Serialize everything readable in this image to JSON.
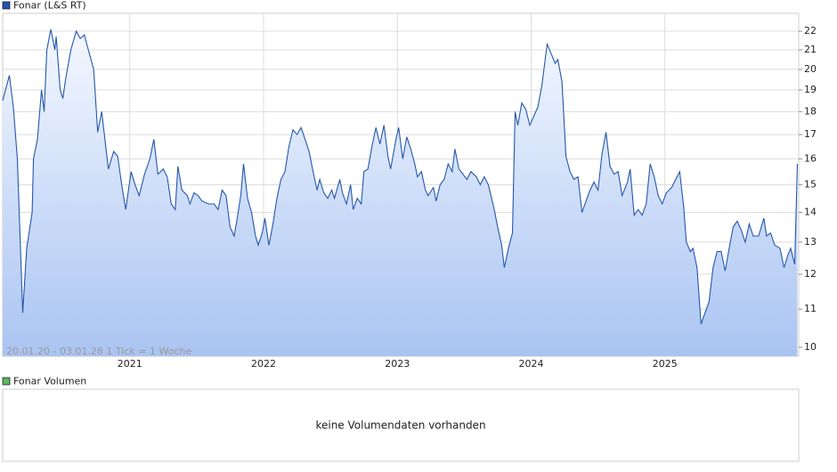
{
  "chart_data": {
    "type": "line",
    "legend": "Fonar (L&S RT)",
    "note": "20.01.20 - 03.01.26   1 Tick = 1 Woche",
    "log_scale": true,
    "grid": true,
    "xlim": [
      2020.05,
      2026.0
    ],
    "xticks": [
      2021,
      2022,
      2023,
      2024,
      2025
    ],
    "ylim": [
      9.78,
      23.0
    ],
    "yticks": [
      10,
      11,
      12,
      13,
      14,
      15,
      16,
      17,
      18,
      19,
      20,
      21,
      22
    ],
    "series": [
      {
        "name": "Fonar (L&S RT)",
        "color": "#2457ad",
        "x": [
          2020.05,
          2020.1,
          2020.13,
          2020.16,
          2020.2,
          2020.23,
          2020.27,
          2020.28,
          2020.31,
          2020.34,
          2020.36,
          2020.38,
          2020.41,
          2020.44,
          2020.45,
          2020.48,
          2020.5,
          2020.52,
          2020.56,
          2020.6,
          2020.63,
          2020.66,
          2020.69,
          2020.73,
          2020.76,
          2020.79,
          2020.81,
          2020.84,
          2020.88,
          2020.91,
          2020.94,
          2020.97,
          2021.01,
          2021.04,
          2021.07,
          2021.11,
          2021.15,
          2021.18,
          2021.21,
          2021.25,
          2021.28,
          2021.31,
          2021.34,
          2021.36,
          2021.39,
          2021.43,
          2021.45,
          2021.48,
          2021.51,
          2021.54,
          2021.59,
          2021.63,
          2021.66,
          2021.69,
          2021.72,
          2021.75,
          2021.78,
          2021.8,
          2021.83,
          2021.85,
          2021.88,
          2021.91,
          2021.94,
          2021.96,
          2021.99,
          2022.01,
          2022.04,
          2022.07,
          2022.1,
          2022.13,
          2022.16,
          2022.19,
          2022.22,
          2022.25,
          2022.28,
          2022.31,
          2022.34,
          2022.37,
          2022.4,
          2022.42,
          2022.45,
          2022.48,
          2022.51,
          2022.53,
          2022.57,
          2022.59,
          2022.62,
          2022.65,
          2022.67,
          2022.7,
          2022.73,
          2022.75,
          2022.78,
          2022.81,
          2022.84,
          2022.87,
          2022.9,
          2022.93,
          2022.95,
          2022.99,
          2023.01,
          2023.04,
          2023.07,
          2023.1,
          2023.13,
          2023.15,
          2023.18,
          2023.21,
          2023.23,
          2023.27,
          2023.29,
          2023.32,
          2023.35,
          2023.38,
          2023.41,
          2023.43,
          2023.46,
          2023.49,
          2023.52,
          2023.55,
          2023.59,
          2023.62,
          2023.65,
          2023.68,
          2023.72,
          2023.75,
          2023.78,
          2023.8,
          2023.83,
          2023.86,
          2023.88,
          2023.9,
          2023.93,
          2023.96,
          2023.99,
          2024.02,
          2024.05,
          2024.08,
          2024.12,
          2024.15,
          2024.18,
          2024.2,
          2024.23,
          2024.26,
          2024.29,
          2024.32,
          2024.35,
          2024.38,
          2024.41,
          2024.44,
          2024.47,
          2024.5,
          2024.53,
          2024.56,
          2024.59,
          2024.62,
          2024.65,
          2024.68,
          2024.72,
          2024.74,
          2024.77,
          2024.8,
          2024.83,
          2024.86,
          2024.89,
          2024.92,
          2024.95,
          2024.98,
          2025.01,
          2025.05,
          2025.08,
          2025.11,
          2025.14,
          2025.16,
          2025.19,
          2025.21,
          2025.24,
          2025.27,
          2025.29,
          2025.33,
          2025.36,
          2025.39,
          2025.42,
          2025.45,
          2025.48,
          2025.51,
          2025.54,
          2025.57,
          2025.6,
          2025.63,
          2025.66,
          2025.7,
          2025.74,
          2025.76,
          2025.79,
          2025.82,
          2025.86,
          2025.89,
          2025.92,
          2025.94,
          2025.97,
          2025.99
        ],
        "values": [
          18.5,
          19.7,
          18.2,
          16,
          10.9,
          12.8,
          14,
          16,
          16.8,
          19,
          18,
          21,
          22.1,
          21,
          21.7,
          19,
          18.6,
          19.5,
          21,
          22,
          21.6,
          21.8,
          21,
          20,
          17.1,
          18,
          17,
          15.6,
          16.3,
          16.1,
          15,
          14.1,
          15.5,
          15,
          14.6,
          15.4,
          16,
          16.8,
          15.4,
          15.6,
          15.3,
          14.3,
          14.1,
          15.7,
          14.8,
          14.6,
          14.3,
          14.7,
          14.6,
          14.4,
          14.3,
          14.3,
          14.1,
          14.8,
          14.6,
          13.5,
          13.2,
          13.7,
          14.6,
          15.8,
          14.5,
          14.0,
          13.2,
          12.9,
          13.3,
          13.8,
          12.9,
          13.6,
          14.5,
          15.2,
          15.5,
          16.5,
          17.2,
          17,
          17.3,
          16.8,
          16.3,
          15.5,
          14.8,
          15.2,
          14.7,
          14.5,
          14.8,
          14.5,
          15.2,
          14.7,
          14.3,
          15.0,
          14.1,
          14.5,
          14.3,
          15.5,
          15.6,
          16.5,
          17.3,
          16.6,
          17.4,
          16.1,
          15.6,
          16.8,
          17.3,
          16.0,
          16.9,
          16.4,
          15.8,
          15.3,
          15.5,
          14.8,
          14.6,
          14.9,
          14.4,
          15,
          15.2,
          15.8,
          15.5,
          16.4,
          15.6,
          15.4,
          15.2,
          15.5,
          15.3,
          15.0,
          15.3,
          15.0,
          14.2,
          13.5,
          12.9,
          12.2,
          12.8,
          13.3,
          18,
          17.4,
          18.4,
          18.1,
          17.4,
          17.8,
          18.2,
          19.2,
          21.3,
          20.8,
          20.3,
          20.5,
          19.4,
          16.1,
          15.5,
          15.2,
          15.3,
          14.0,
          14.4,
          14.8,
          15.1,
          14.8,
          16.2,
          17.1,
          15.7,
          15.4,
          15.5,
          14.6,
          15.1,
          15.6,
          13.9,
          14.1,
          13.9,
          14.3,
          15.8,
          15.3,
          14.6,
          14.3,
          14.7,
          14.9,
          15.2,
          15.5,
          14.2,
          13.0,
          12.7,
          12.8,
          12.2,
          10.6,
          10.8,
          11.2,
          12.2,
          12.7,
          12.7,
          12.1,
          12.8,
          13.5,
          13.7,
          13.4,
          13.0,
          13.6,
          13.2,
          13.2,
          13.8,
          13.2,
          13.3,
          12.9,
          12.8,
          12.2,
          12.6,
          12.8,
          12.3,
          15.8
        ]
      }
    ]
  },
  "volume_panel": {
    "legend": "Fonar Volumen",
    "color": "#5cb85c",
    "message": "keine Volumendaten vorhanden"
  }
}
